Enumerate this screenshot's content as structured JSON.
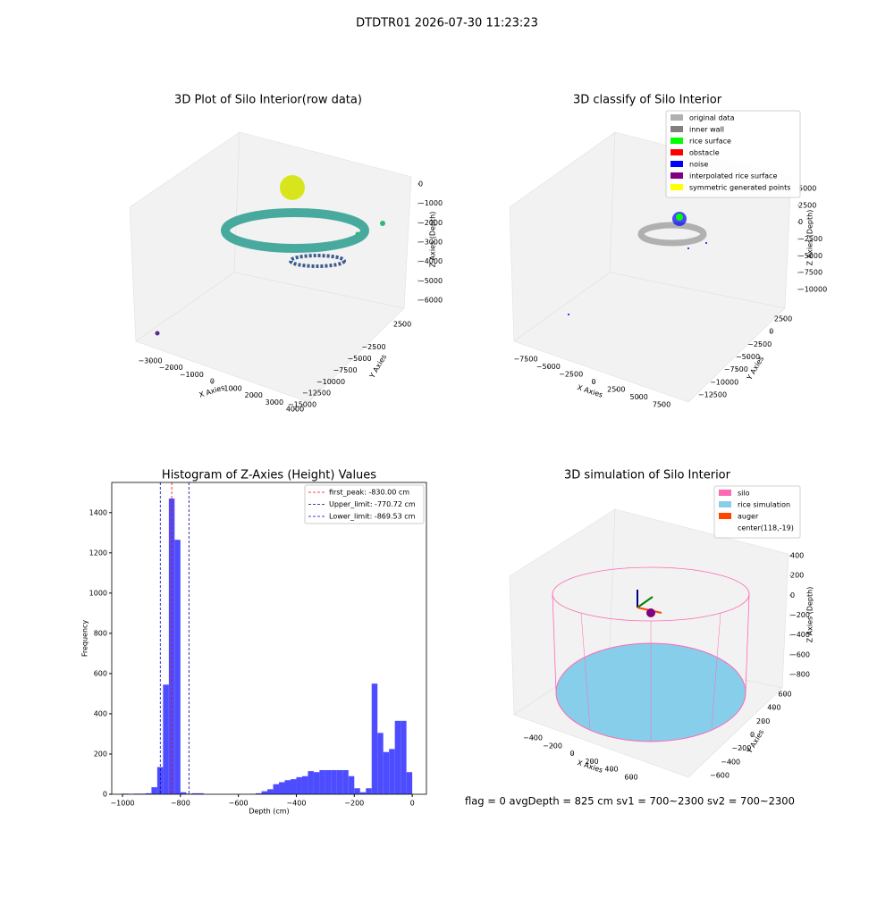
{
  "title": "DTDTR01 2026-07-30 11:23:23",
  "footer": "flag = 0     avgDepth = 825 cm  sv1 = 700~2300  sv2 = 700~2300",
  "chart_data": [
    {
      "type": "scatter3d",
      "title": "3D Plot of Silo Interior(row data)",
      "xlabel": "X Axies",
      "ylabel": "Y Axies",
      "zlabel": "Z Axies (Depth)",
      "xticks": [
        {
          "value": -3000,
          "label": "−3000"
        },
        {
          "value": -2000,
          "label": "−2000"
        },
        {
          "value": -1000,
          "label": "−1000"
        },
        0,
        1000,
        2000,
        3000,
        4000
      ],
      "yticks": [
        {
          "value": -15000,
          "label": "−15000"
        },
        {
          "value": -12500,
          "label": "−12500"
        },
        {
          "value": -10000,
          "label": "−10000"
        },
        {
          "value": -7500,
          "label": "−7500"
        },
        {
          "value": -5000,
          "label": "−5000"
        },
        {
          "value": -2500,
          "label": "−2500"
        },
        2500
      ],
      "zticks": [
        0,
        {
          "value": -1000,
          "label": "−1000"
        },
        {
          "value": -2000,
          "label": "−2000"
        },
        {
          "value": -3000,
          "label": "−3000"
        },
        {
          "value": -4000,
          "label": "−4000"
        },
        {
          "value": -5000,
          "label": "−5000"
        },
        {
          "value": -6000,
          "label": "−6000"
        }
      ]
    },
    {
      "type": "scatter3d",
      "title": "3D classify of Silo Interior",
      "xlabel": "X Axies",
      "ylabel": "Y Axies",
      "zlabel": "Z Axies (Depth)",
      "xticks": [
        {
          "value": -7500,
          "label": "−7500"
        },
        {
          "value": -5000,
          "label": "−5000"
        },
        {
          "value": -2500,
          "label": "−2500"
        },
        0,
        2500,
        5000,
        7500
      ],
      "yticks": [
        {
          "value": -12500,
          "label": "−12500"
        },
        {
          "value": -10000,
          "label": "−10000"
        },
        {
          "value": -7500,
          "label": "−7500"
        },
        {
          "value": -5000,
          "label": "−5000"
        },
        {
          "value": -2500,
          "label": "−2500"
        },
        0,
        2500
      ],
      "zticks": [
        5000,
        2500,
        0,
        {
          "value": -2500,
          "label": "−2500"
        },
        {
          "value": -5000,
          "label": "−5000"
        },
        {
          "value": -7500,
          "label": "−7500"
        },
        {
          "value": -10000,
          "label": "−10000"
        }
      ],
      "legend": [
        {
          "name": "original data",
          "color": "#b0b0b0"
        },
        {
          "name": "inner wall",
          "color": "#808080"
        },
        {
          "name": "rice surface",
          "color": "#00ff00"
        },
        {
          "name": "obstacle",
          "color": "#ff0000"
        },
        {
          "name": "noise",
          "color": "#0000ff"
        },
        {
          "name": "interpolated rice surface",
          "color": "#800080"
        },
        {
          "name": "symmetric generated points",
          "color": "#ffff00"
        }
      ]
    },
    {
      "type": "histogram",
      "title": "Histogram of Z-Axies (Height) Values",
      "xlabel": "Depth (cm)",
      "ylabel": "Frequency",
      "color": "#4d4dff",
      "bins": [
        -1000,
        -980,
        -960,
        -940,
        -920,
        -900,
        -880,
        -860,
        -840,
        -820,
        -800,
        -780,
        -760,
        -740,
        -720,
        -700,
        -680,
        -660,
        -640,
        -620,
        -600,
        -580,
        -560,
        -540,
        -520,
        -500,
        -480,
        -460,
        -440,
        -420,
        -400,
        -380,
        -360,
        -340,
        -320,
        -300,
        -280,
        -260,
        -240,
        -220,
        -200,
        -180,
        -160,
        -140,
        -120,
        -100,
        -80,
        -60,
        -40,
        -20,
        0
      ],
      "counts": [
        3,
        2,
        3,
        3,
        5,
        35,
        135,
        545,
        1470,
        1265,
        10,
        3,
        5,
        5,
        0,
        0,
        0,
        0,
        0,
        0,
        0,
        0,
        2,
        5,
        15,
        25,
        50,
        60,
        70,
        75,
        85,
        90,
        115,
        110,
        120,
        120,
        120,
        120,
        120,
        90,
        30,
        10,
        30,
        550,
        305,
        210,
        225,
        365,
        365,
        110
      ],
      "xlim": [
        -1037,
        49
      ],
      "ylim": [
        0,
        1550
      ],
      "xticks": [
        {
          "value": -1000,
          "label": "−1000"
        },
        {
          "value": -800,
          "label": "−800"
        },
        {
          "value": -600,
          "label": "−600"
        },
        {
          "value": -400,
          "label": "−400"
        },
        {
          "value": -200,
          "label": "−200"
        },
        0
      ],
      "yticks": [
        0,
        200,
        400,
        600,
        800,
        1000,
        1200,
        1400
      ],
      "vlines": [
        {
          "name": "first_peak: -830.00 cm",
          "value": -830,
          "color": "#ff0000"
        },
        {
          "name": "Upper_limit: -770.72 cm",
          "value": -770.72,
          "color": "#00008b"
        },
        {
          "name": "Lower_limit: -869.53 cm",
          "value": -869.53,
          "color": "#0000cd"
        }
      ]
    },
    {
      "type": "scatter3d",
      "title": "3D simulation of Silo Interior",
      "xlabel": "X Axies",
      "ylabel": "Y Axies",
      "zlabel": "Z Axies (Depth)",
      "xticks": [
        {
          "value": -400,
          "label": "−400"
        },
        {
          "value": -200,
          "label": "−200"
        },
        0,
        200,
        400,
        600
      ],
      "yticks": [
        {
          "value": -600,
          "label": "−600"
        },
        {
          "value": -400,
          "label": "−400"
        },
        {
          "value": -200,
          "label": "−200"
        },
        0,
        200,
        400,
        600
      ],
      "zticks": [
        400,
        200,
        0,
        {
          "value": -200,
          "label": "−200"
        },
        {
          "value": -400,
          "label": "−400"
        },
        {
          "value": -600,
          "label": "−600"
        },
        {
          "value": -800,
          "label": "−800"
        }
      ],
      "legend": [
        {
          "name": "silo",
          "color": "#ff69b4"
        },
        {
          "name": "rice simulation",
          "color": "#87ceeb"
        },
        {
          "name": "auger",
          "color": "#ff4500"
        },
        {
          "name": "center(118,-19)",
          "color": null
        }
      ]
    }
  ]
}
